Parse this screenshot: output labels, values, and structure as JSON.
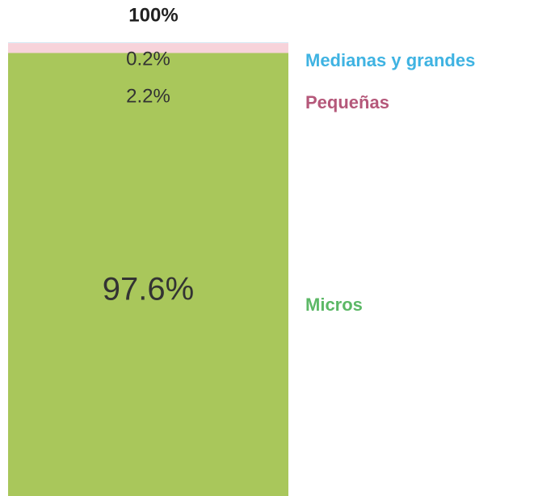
{
  "chart_data": {
    "type": "stacked-bar",
    "annotations": [
      "100%"
    ],
    "ylim": [
      0,
      100
    ],
    "series": [
      {
        "name": "Micros",
        "color": "#a9c75b",
        "label_color": "#5cb866",
        "values": [
          97.6
        ],
        "value_labels": [
          "97.6%"
        ]
      },
      {
        "name": "Pequeñas",
        "color": "#f7d3da",
        "label_color": "#b5587a",
        "values": [
          2.2
        ],
        "value_labels": [
          "2.2%"
        ]
      },
      {
        "name": "Medianas y grandes",
        "color": "#d8eff8",
        "label_color": "#3fb3e2",
        "values": [
          0.2
        ],
        "value_labels": [
          "0.2%"
        ]
      }
    ]
  }
}
